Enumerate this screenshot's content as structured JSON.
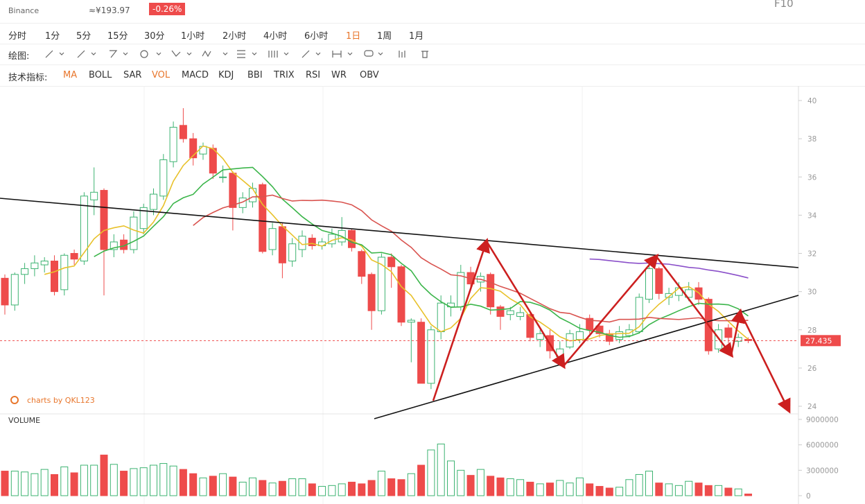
{
  "header": {
    "exchange": "Binance",
    "cny_price": "≈¥193.97",
    "change": "-0.26%",
    "f10": "F10"
  },
  "timeframes": [
    "分时",
    "1分",
    "5分",
    "15分",
    "30分",
    "1小时",
    "2小时",
    "4小时",
    "6小时",
    "1日",
    "1周",
    "1月"
  ],
  "drawing_label": "绘图:",
  "indicator_label": "技术指标:",
  "indicators": [
    "MA",
    "BOLL",
    "SAR",
    "VOL",
    "MACD",
    "KDJ",
    "BBI",
    "TRIX",
    "RSI",
    "WR",
    "OBV"
  ],
  "chart_data": {
    "type": "candlestick",
    "watermark": "charts by QKL123",
    "volume_label": "VOLUME",
    "last_price": 27.435,
    "ylim": [
      24,
      40
    ],
    "yticks": [
      24,
      26,
      28,
      30,
      32,
      34,
      36,
      38,
      40
    ],
    "vlim": [
      0,
      9000000
    ],
    "vticks": [
      0,
      3000000,
      6000000,
      9000000
    ],
    "open": [
      30.7,
      29.3,
      30.9,
      31.2,
      31.4,
      31.6,
      30.1,
      32.0,
      31.6,
      34.8,
      35.3,
      32.2,
      32.7,
      32.2,
      33.3,
      34.3,
      35.0,
      36.8,
      38.7,
      38.0,
      37.2,
      37.5,
      36.0,
      36.2,
      34.4,
      34.7,
      35.6,
      32.2,
      33.4,
      31.6,
      32.2,
      32.8,
      32.4,
      32.5,
      32.6,
      33.2,
      32.1,
      30.9,
      29.0,
      31.8,
      31.3,
      28.4,
      28.4,
      25.2,
      27.9,
      29.2,
      29.2,
      31.0,
      30.5,
      30.9,
      29.2,
      28.8,
      28.7,
      28.8,
      27.5,
      27.7,
      26.6,
      27.1,
      27.5,
      28.6,
      28.2,
      27.8,
      27.5,
      27.7,
      27.9,
      29.6,
      31.2,
      29.7,
      29.8,
      29.7,
      30.2,
      29.6,
      27.0,
      28.1,
      27.4,
      27.5
    ],
    "high": [
      30.9,
      31.0,
      31.5,
      31.9,
      31.8,
      31.9,
      32.0,
      32.2,
      35.2,
      36.5,
      35.4,
      33.0,
      33.0,
      34.2,
      34.6,
      35.4,
      37.2,
      38.9,
      39.6,
      38.3,
      37.8,
      37.7,
      36.6,
      36.3,
      35.2,
      35.7,
      35.7,
      33.6,
      33.6,
      32.8,
      33.2,
      33.0,
      32.8,
      33.3,
      33.9,
      33.3,
      32.2,
      31.0,
      32.0,
      32.0,
      31.4,
      28.6,
      28.6,
      28.2,
      29.8,
      29.8,
      31.4,
      31.3,
      31.0,
      31.0,
      29.3,
      29.2,
      29.2,
      28.9,
      28.0,
      28.0,
      27.4,
      28.0,
      28.3,
      28.8,
      28.4,
      28.0,
      28.2,
      28.3,
      29.9,
      31.4,
      31.3,
      30.2,
      30.5,
      30.5,
      30.5,
      29.7,
      28.3,
      28.3,
      27.8,
      27.6
    ],
    "low": [
      28.8,
      29.0,
      30.4,
      30.8,
      31.0,
      29.8,
      29.8,
      31.4,
      31.4,
      34.0,
      29.8,
      31.8,
      32.0,
      32.0,
      33.0,
      34.0,
      34.8,
      36.5,
      37.8,
      36.6,
      36.9,
      35.9,
      35.7,
      33.2,
      34.1,
      34.4,
      32.0,
      31.9,
      30.7,
      31.3,
      31.8,
      32.2,
      32.2,
      32.3,
      32.4,
      32.1,
      30.4,
      28.0,
      28.8,
      30.2,
      28.2,
      26.3,
      25.2,
      24.9,
      27.5,
      28.7,
      29.0,
      30.2,
      30.0,
      28.8,
      28.0,
      28.5,
      28.5,
      27.4,
      27.1,
      26.5,
      26.1,
      27.0,
      27.3,
      27.8,
      27.6,
      27.2,
      27.3,
      27.6,
      27.8,
      29.4,
      29.6,
      29.3,
      29.5,
      29.5,
      29.3,
      26.7,
      26.8,
      27.3,
      27.1,
      27.3
    ],
    "close": [
      29.3,
      30.9,
      31.2,
      31.5,
      31.6,
      30.0,
      31.9,
      31.7,
      35.0,
      35.2,
      32.2,
      32.6,
      32.2,
      33.9,
      34.4,
      35.1,
      36.9,
      38.6,
      38.0,
      37.0,
      37.6,
      36.2,
      36.0,
      34.4,
      34.9,
      35.4,
      32.1,
      33.3,
      31.5,
      32.5,
      32.9,
      32.4,
      32.6,
      33.0,
      33.2,
      32.3,
      30.8,
      29.0,
      31.8,
      31.3,
      28.4,
      28.5,
      25.2,
      28.0,
      29.4,
      29.4,
      31.0,
      30.4,
      30.8,
      29.2,
      28.7,
      29.0,
      28.9,
      27.6,
      27.8,
      26.9,
      27.0,
      27.8,
      27.9,
      28.0,
      27.8,
      27.4,
      27.9,
      28.0,
      29.7,
      31.2,
      29.9,
      29.9,
      30.2,
      30.1,
      29.6,
      26.9,
      28.0,
      27.6,
      27.6,
      27.435
    ],
    "volume": [
      2900000,
      2900000,
      2800000,
      2600000,
      3100000,
      2500000,
      3400000,
      2700000,
      3600000,
      3600000,
      4800000,
      3700000,
      2900000,
      3200000,
      3300000,
      3600000,
      3800000,
      3500000,
      3100000,
      2600000,
      2100000,
      2300000,
      2600000,
      2200000,
      1600000,
      2100000,
      1800000,
      1500000,
      1700000,
      2000000,
      2000000,
      1400000,
      1100000,
      1200000,
      1400000,
      1600000,
      1400000,
      1800000,
      2900000,
      2000000,
      1900000,
      2600000,
      3600000,
      5400000,
      6100000,
      4100000,
      3000000,
      2400000,
      3100000,
      2300000,
      2100000,
      2000000,
      1900000,
      1600000,
      1400000,
      1500000,
      1800000,
      1500000,
      2100000,
      1400000,
      1100000,
      900000,
      1000000,
      1900000,
      2500000,
      2900000,
      1500000,
      1400000,
      1200000,
      1700000,
      1500000,
      1200000,
      1200000,
      900000,
      800000,
      200000
    ],
    "up_color": "#3cb371",
    "down_color": "#ee4b4b"
  }
}
